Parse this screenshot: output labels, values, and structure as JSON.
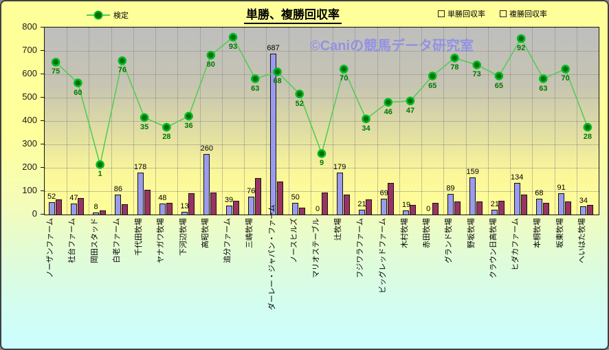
{
  "header": {
    "title": "単勝、複勝回収率",
    "legend_line_label": "検定",
    "legend_bar1_label": "単勝回収率",
    "legend_bar2_label": "複勝回収率"
  },
  "watermark": "©Caniの競馬データ研究室",
  "colors": {
    "bar1": "#9b9bee",
    "bar2": "#993366",
    "line": "#55cc55",
    "marker_fill": "#0a6e0a",
    "marker_ring": "#00bb22",
    "line_label_color": "#007700"
  },
  "chart_data": {
    "type": "bar",
    "subtype": "combo-bar-line",
    "title": "単勝、複勝回収率",
    "xlabel": "",
    "ylabel": "",
    "ylim": [
      0,
      800
    ],
    "y_step": 100,
    "y_ticks": [
      "0",
      "100",
      "200",
      "300",
      "400",
      "500",
      "600",
      "700",
      "800"
    ],
    "line_ylim": [
      -35,
      100
    ],
    "grid": true,
    "legend_position": "top",
    "categories": [
      "ノーザンファーム",
      "社台ファーム",
      "岡田スタッド",
      "白老ファーム",
      "千代田牧場",
      "ヤナガワ牧場",
      "下河辺牧場",
      "高昭牧場",
      "追分ファーム",
      "三嶋牧場",
      "ダーレー・ジャパン・ファーム",
      "ノースヒルズ",
      "マリオステーブル",
      "辻牧場",
      "フジワラファーム",
      "ビッグレッドファーム",
      "木村牧場",
      "赤田牧場",
      "グランド牧場",
      "野坂牧場",
      "クラウン日高牧場",
      "ヒダカファーム",
      "本桐牧場",
      "坂東牧場",
      "へいはた牧場"
    ],
    "series": [
      {
        "name": "単勝回収率",
        "type": "bar",
        "data_labels": true,
        "values": [
          52,
          47,
          8,
          86,
          178,
          48,
          13,
          260,
          39,
          76,
          687,
          50,
          0,
          179,
          21,
          69,
          19,
          0,
          89,
          159,
          21,
          134,
          68,
          91,
          34
        ]
      },
      {
        "name": "複勝回収率",
        "type": "bar",
        "data_labels": false,
        "values": [
          65,
          72,
          18,
          45,
          105,
          50,
          90,
          95,
          60,
          155,
          140,
          30,
          95,
          85,
          65,
          135,
          40,
          50,
          55,
          55,
          60,
          85,
          50,
          55,
          40
        ]
      },
      {
        "name": "検定",
        "type": "line",
        "data_labels": true,
        "values": [
          75,
          60,
          1,
          76,
          35,
          28,
          36,
          80,
          93,
          63,
          68,
          52,
          9,
          70,
          34,
          46,
          47,
          65,
          78,
          73,
          65,
          92,
          63,
          70,
          28
        ]
      }
    ]
  }
}
